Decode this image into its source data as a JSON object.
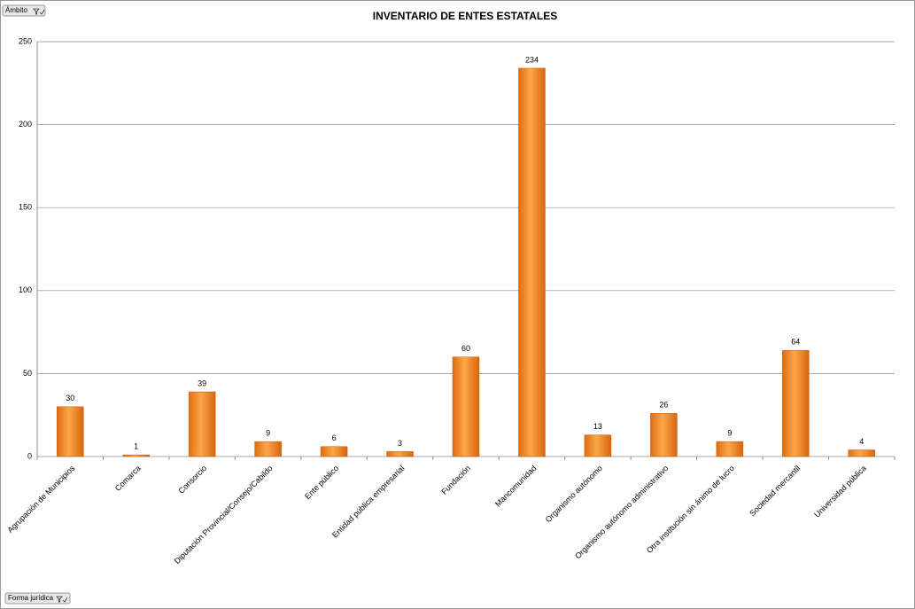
{
  "chart_data": {
    "type": "bar",
    "title": "INVENTARIO DE ENTES ESTATALES",
    "categories": [
      "Agrupación de Municipios",
      "Comarca",
      "Consorcio",
      "Diputación Provincial/Consejo/Cabildo",
      "Ente público",
      "Entidad pública empresarial",
      "Fundación",
      "Mancomunidad",
      "Organismo autónomo",
      "Organismo autónomo administrativo",
      "Otra institución sin ánimo de lucro",
      "Sociedad mercantil",
      "Universidad pública"
    ],
    "values": [
      30,
      1,
      39,
      9,
      6,
      3,
      60,
      234,
      13,
      26,
      9,
      64,
      4
    ],
    "color": "#f28a1e",
    "ylim": [
      0,
      250
    ],
    "yticks": [
      0,
      50,
      100,
      150,
      200,
      250
    ],
    "grid": true
  },
  "filters": [
    "Ámbito",
    "Forma jurídica"
  ]
}
